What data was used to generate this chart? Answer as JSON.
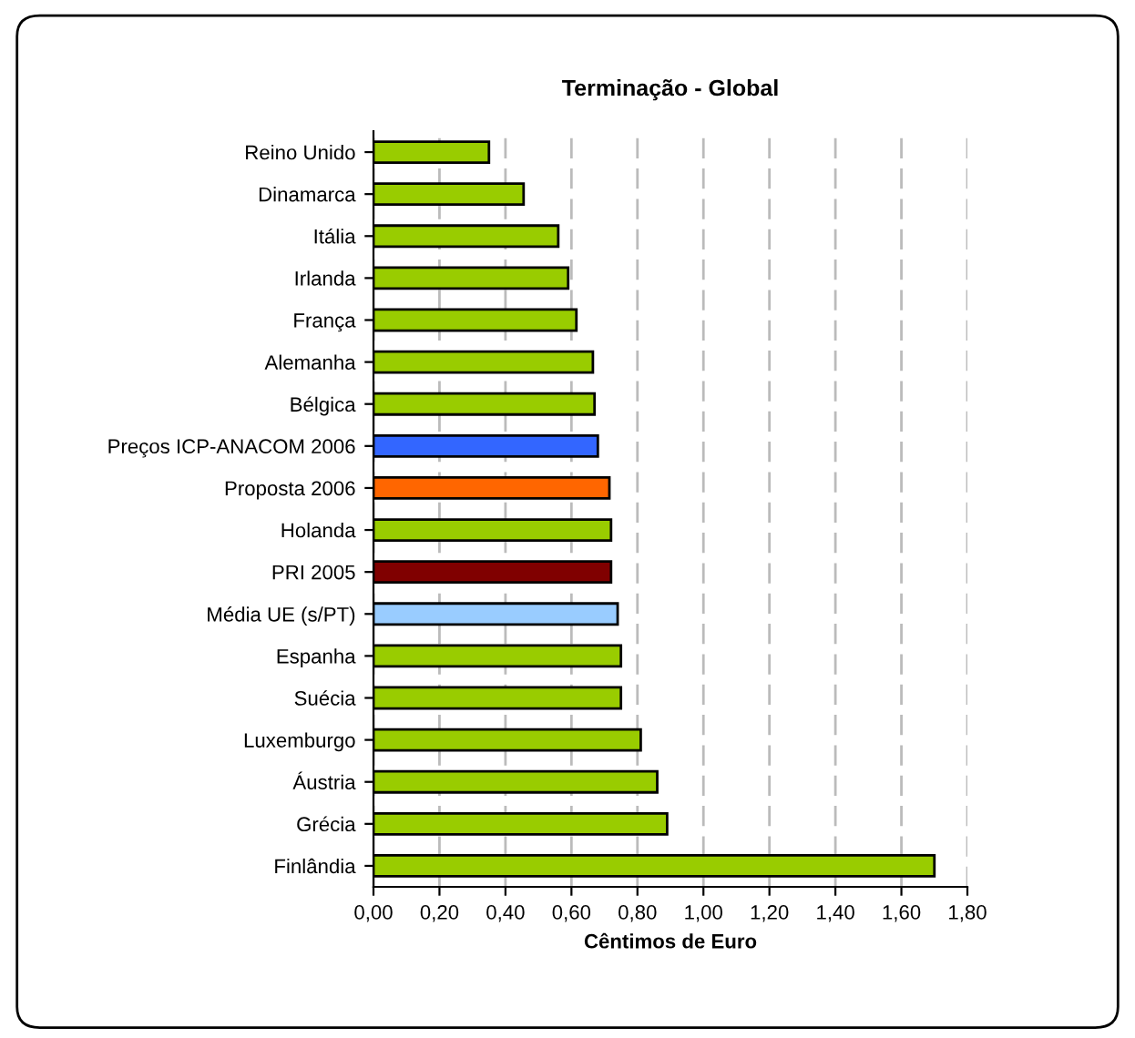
{
  "chart_data": {
    "type": "bar",
    "orientation": "horizontal",
    "title": "Terminação - Global",
    "xlabel": "Cêntimos de Euro",
    "categories": [
      "Reino Unido",
      "Dinamarca",
      "Itália",
      "Irlanda",
      "França",
      "Alemanha",
      "Bélgica",
      "Preços ICP-ANACOM 2006",
      "Proposta 2006",
      "Holanda",
      "PRI 2005",
      "Média UE (s/PT)",
      "Espanha",
      "Suécia",
      "Luxemburgo",
      "Áustria",
      "Grécia",
      "Finlândia"
    ],
    "values": [
      0.35,
      0.455,
      0.56,
      0.59,
      0.615,
      0.665,
      0.67,
      0.68,
      0.715,
      0.72,
      0.72,
      0.74,
      0.75,
      0.75,
      0.81,
      0.86,
      0.89,
      1.7
    ],
    "colors": [
      "#99cc00",
      "#99cc00",
      "#99cc00",
      "#99cc00",
      "#99cc00",
      "#99cc00",
      "#99cc00",
      "#3366ff",
      "#ff6600",
      "#99cc00",
      "#800000",
      "#99ccff",
      "#99cc00",
      "#99cc00",
      "#99cc00",
      "#99cc00",
      "#99cc00",
      "#99cc00"
    ],
    "xlim": [
      0,
      1.8
    ],
    "xticks": [
      {
        "value": 0,
        "label": "0,00"
      },
      {
        "value": 0.2,
        "label": "0,20"
      },
      {
        "value": 0.4,
        "label": "0,40"
      },
      {
        "value": 0.6,
        "label": "0,60"
      },
      {
        "value": 0.8,
        "label": "0,80"
      },
      {
        "value": 1.0,
        "label": "1,00"
      },
      {
        "value": 1.2,
        "label": "1,20"
      },
      {
        "value": 1.4,
        "label": "1,40"
      },
      {
        "value": 1.6,
        "label": "1,60"
      },
      {
        "value": 1.8,
        "label": "1,80"
      }
    ],
    "grid": "x",
    "legend": false
  }
}
